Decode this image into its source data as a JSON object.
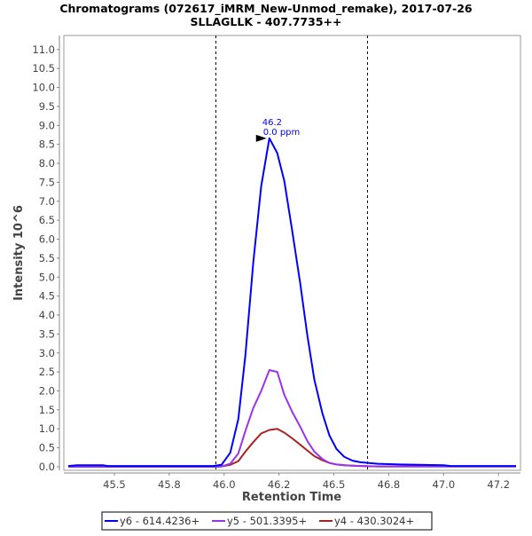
{
  "chart_data": {
    "type": "line",
    "title": "Chromatograms (072617_iMRM_New-Unmod_remake), 2017-07-26",
    "subtitle": "SLLAGLLK - 407.7735++",
    "xlabel": "Retention Time",
    "ylabel": "Intensity 10^6",
    "xlim": [
      45.27,
      47.35
    ],
    "ylim": [
      -0.094,
      11.37
    ],
    "grid": false,
    "legend_position": "bottom",
    "x_ticks": [
      45.5,
      45.75,
      46.0,
      46.25,
      46.5,
      46.75,
      47.0,
      47.25
    ],
    "x_tick_labels": [
      "45.5",
      "45.8",
      "46.0",
      "46.2",
      "46.5",
      "46.8",
      "47.0",
      "47.2"
    ],
    "y_ticks": [
      0,
      0.5,
      1,
      1.5,
      2,
      2.5,
      3,
      3.5,
      4,
      4.5,
      5,
      5.5,
      6,
      6.5,
      7,
      7.5,
      8,
      8.5,
      9,
      9.5,
      10,
      10.5,
      11
    ],
    "y_tick_labels": [
      "0.0",
      "0.5",
      "1.0",
      "1.5",
      "2.0",
      "2.5",
      "3.0",
      "3.5",
      "4.0",
      "4.5",
      "5.0",
      "5.5",
      "6.0",
      "6.5",
      "7.0",
      "7.5",
      "8.0",
      "8.5",
      "9.0",
      "9.5",
      "10.0",
      "10.5",
      "11.0"
    ],
    "integration_bounds": [
      45.96,
      46.65
    ],
    "annotation": {
      "x": 46.206,
      "y": 8.66,
      "line1": "46.2",
      "line2": "0.0 ppm",
      "color": "#0000ff"
    },
    "x": [
      45.29,
      45.33,
      45.45,
      45.47,
      45.95,
      45.988,
      46.028,
      46.065,
      46.097,
      46.133,
      46.169,
      46.206,
      46.242,
      46.274,
      46.31,
      46.347,
      46.379,
      46.411,
      46.448,
      46.48,
      46.512,
      46.548,
      46.585,
      46.621,
      46.7,
      46.8,
      47.0,
      47.03,
      47.33
    ],
    "series": [
      {
        "name": "y6 - 614.4236+",
        "color": "#0000ff",
        "values": [
          0.02,
          0.04,
          0.04,
          0.02,
          0.02,
          0.05,
          0.37,
          1.26,
          2.95,
          5.4,
          7.4,
          8.66,
          8.27,
          7.54,
          6.23,
          4.82,
          3.47,
          2.3,
          1.4,
          0.82,
          0.47,
          0.26,
          0.16,
          0.12,
          0.08,
          0.06,
          0.04,
          0.02,
          0.02
        ]
      },
      {
        "name": "y5 - 501.3395+",
        "color": "#9933ee",
        "values": [
          0,
          0,
          0,
          0,
          0,
          0.01,
          0.08,
          0.35,
          0.95,
          1.55,
          2.0,
          2.55,
          2.5,
          1.9,
          1.45,
          1.05,
          0.68,
          0.4,
          0.2,
          0.1,
          0.06,
          0.04,
          0.03,
          0.02,
          0.01,
          0.01,
          0.01,
          0.01,
          0.01
        ]
      },
      {
        "name": "y4 - 430.3024+",
        "color": "#aa2222",
        "values": [
          0,
          0,
          0,
          0,
          0,
          0.01,
          0.05,
          0.15,
          0.4,
          0.65,
          0.88,
          0.97,
          1.0,
          0.9,
          0.75,
          0.58,
          0.43,
          0.28,
          0.17,
          0.1,
          0.06,
          0.04,
          0.03,
          0.02,
          0.01,
          0.01,
          0.01,
          0.01,
          0.01
        ]
      }
    ]
  }
}
